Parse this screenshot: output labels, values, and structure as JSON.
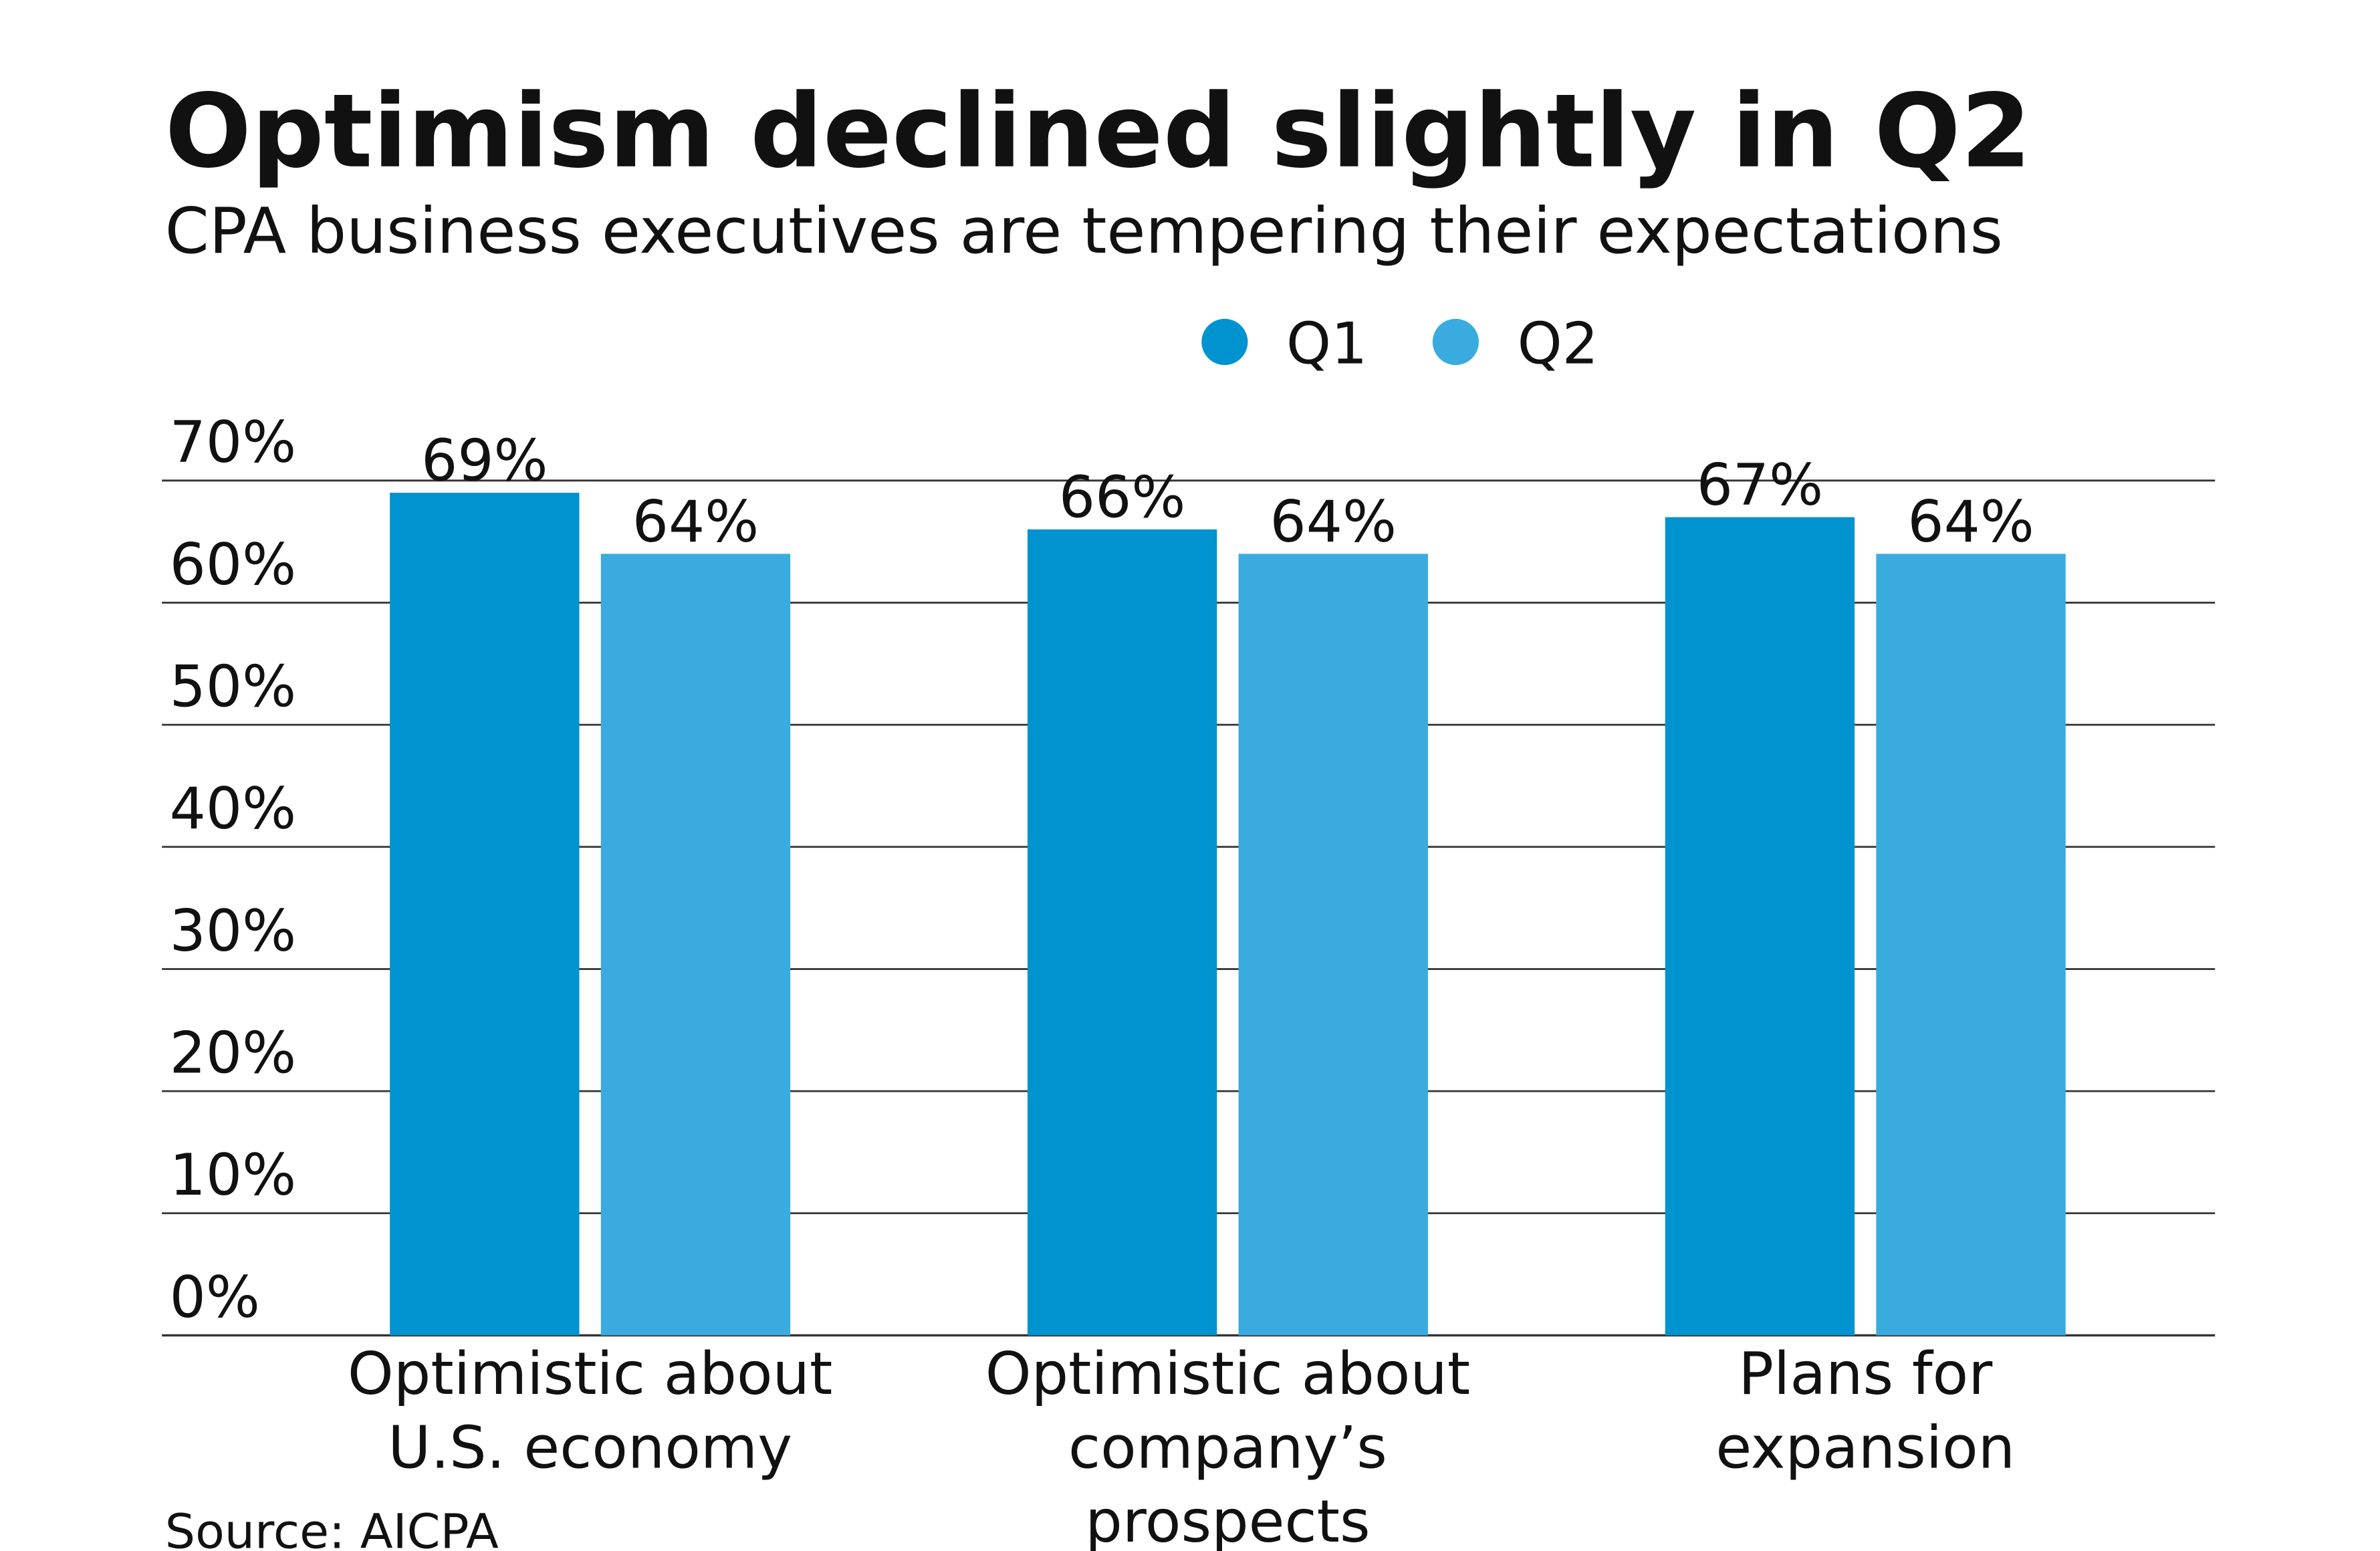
{
  "chart_data": {
    "type": "bar",
    "title": "Optimism declined slightly in Q2",
    "subtitle": "CPA business executives are tempering their expectations",
    "source": "Source: AICPA",
    "categories": [
      [
        "Optimistic about",
        "U.S. economy"
      ],
      [
        "Optimistic about",
        "company’s",
        "prospects"
      ],
      [
        "Plans for",
        "expansion"
      ]
    ],
    "series": [
      {
        "name": "Q1",
        "color": "#0093d0",
        "values": [
          69,
          66,
          67
        ],
        "value_labels": [
          "69%",
          "66%",
          "67%"
        ]
      },
      {
        "name": "Q2",
        "color": "#3aabde",
        "values": [
          64,
          64,
          64
        ],
        "value_labels": [
          "64%",
          "64%",
          "64%"
        ]
      }
    ],
    "ylim": [
      0,
      70
    ],
    "yticks": [
      {
        "value": 0,
        "label": "0%"
      },
      {
        "value": 10,
        "label": "10%"
      },
      {
        "value": 20,
        "label": "20%"
      },
      {
        "value": 30,
        "label": "30%"
      },
      {
        "value": 40,
        "label": "40%"
      },
      {
        "value": 50,
        "label": "50%"
      },
      {
        "value": 60,
        "label": "60%"
      },
      {
        "value": 70,
        "label": "70%"
      }
    ],
    "grid": true
  }
}
